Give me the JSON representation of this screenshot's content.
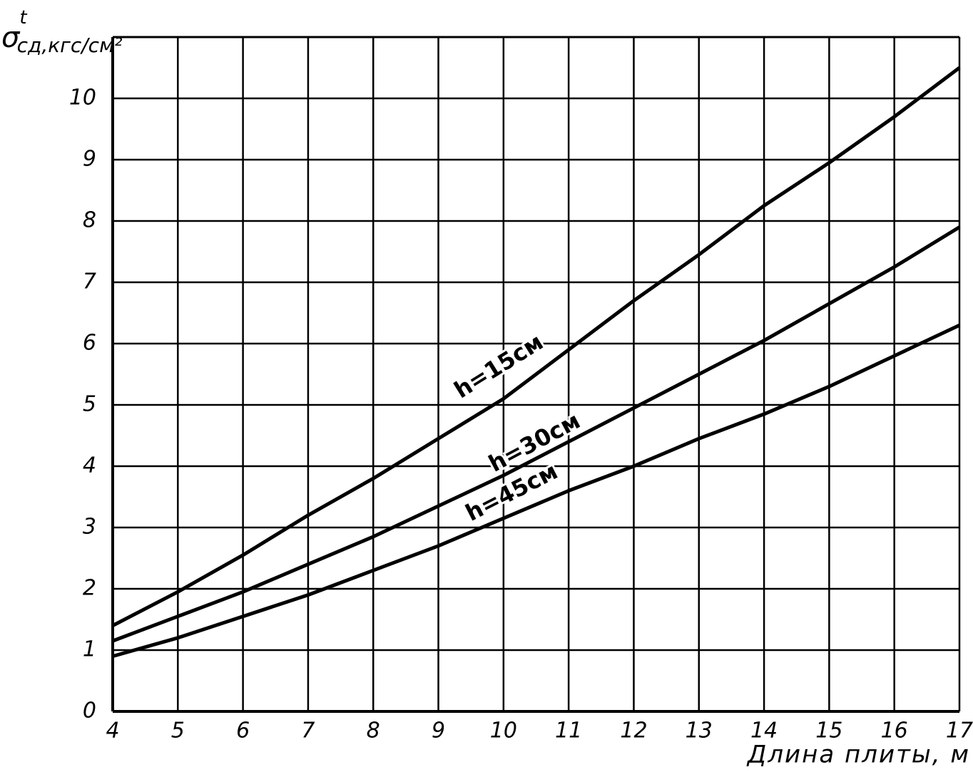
{
  "chart_data": {
    "type": "line",
    "y_label": "σ",
    "y_label_sup": "t",
    "y_label_sub": "сд",
    "y_label_unit": ",кгс/см²",
    "x_label": "Длина плиты, м",
    "x": [
      4,
      5,
      6,
      7,
      8,
      9,
      10,
      11,
      12,
      13,
      14,
      15,
      16,
      17
    ],
    "series": [
      {
        "name": "h=15см",
        "color": "#000000",
        "values": [
          1.4,
          1.95,
          2.55,
          3.2,
          3.8,
          4.45,
          5.1,
          5.9,
          6.7,
          7.45,
          8.25,
          8.95,
          9.7,
          10.5
        ]
      },
      {
        "name": "h=30см",
        "color": "#000000",
        "values": [
          1.15,
          1.55,
          1.95,
          2.4,
          2.85,
          3.35,
          3.85,
          4.4,
          4.95,
          5.5,
          6.05,
          6.65,
          7.25,
          7.9
        ]
      },
      {
        "name": "h=45см",
        "color": "#000000",
        "values": [
          0.9,
          1.2,
          1.55,
          1.9,
          2.3,
          2.7,
          3.15,
          3.6,
          4.0,
          4.45,
          4.85,
          5.3,
          5.8,
          6.3
        ]
      }
    ],
    "xlim": [
      4,
      17
    ],
    "xticks": [
      4,
      5,
      6,
      7,
      8,
      9,
      10,
      11,
      12,
      13,
      14,
      15,
      16,
      17
    ],
    "ylim": [
      0,
      11
    ],
    "yticks": [
      0,
      1,
      2,
      3,
      4,
      5,
      6,
      7,
      8,
      9,
      10
    ],
    "grid": true
  }
}
